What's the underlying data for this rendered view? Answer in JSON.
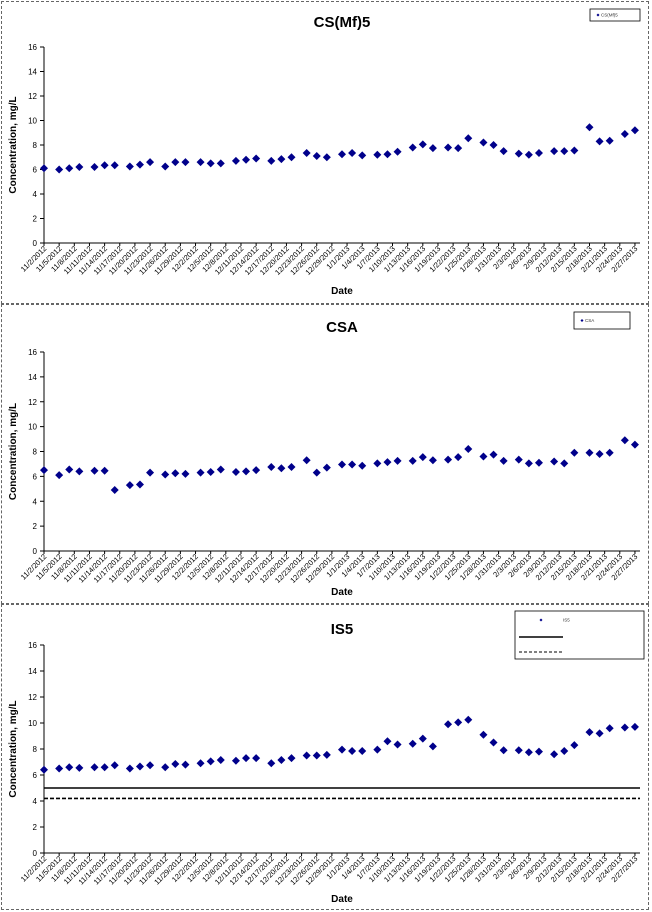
{
  "chart_data": [
    {
      "type": "scatter",
      "title": "CS(Mf)5",
      "xlabel": "Date",
      "ylabel": "Concentration, mg/L",
      "ylim": [
        0,
        16
      ],
      "yticks": [
        "0",
        "2",
        "4",
        "6",
        "8",
        "10",
        "12",
        "14",
        "16"
      ],
      "xlim": [
        "11/2/2012",
        "2/28/2013"
      ],
      "x_tick_labels": [
        "11/2/2012",
        "11/5/2012",
        "11/8/2012",
        "11/11/2012",
        "11/14/2012",
        "11/17/2012",
        "11/20/2012",
        "11/23/2012",
        "11/26/2012",
        "11/29/2012",
        "12/2/2012",
        "12/5/2012",
        "12/8/2012",
        "12/11/2012",
        "12/14/2012",
        "12/17/2012",
        "12/20/2012",
        "12/23/2012",
        "12/26/2012",
        "12/29/2012",
        "1/1/2013",
        "1/4/2013",
        "1/7/2013",
        "1/10/2013",
        "1/13/2013",
        "1/16/2013",
        "1/19/2013",
        "1/22/2013",
        "1/25/2013",
        "1/28/2013",
        "1/31/2013",
        "2/3/2013",
        "2/6/2013",
        "2/9/2013",
        "2/12/2013",
        "2/15/2013",
        "2/18/2013",
        "2/21/2013",
        "2/24/2013",
        "2/27/2013"
      ],
      "grid": false,
      "legend_position": "top-right",
      "series": [
        {
          "name": "CS(Mf)5",
          "color": "#00008B",
          "marker": "diamond",
          "points": [
            [
              "11/2/2012",
              6.1
            ],
            [
              "11/5/2012",
              6.0
            ],
            [
              "11/7/2012",
              6.1
            ],
            [
              "11/9/2012",
              6.2
            ],
            [
              "11/12/2012",
              6.2
            ],
            [
              "11/14/2012",
              6.35
            ],
            [
              "11/16/2012",
              6.35
            ],
            [
              "11/19/2012",
              6.25
            ],
            [
              "11/21/2012",
              6.4
            ],
            [
              "11/23/2012",
              6.6
            ],
            [
              "11/26/2012",
              6.25
            ],
            [
              "11/28/2012",
              6.6
            ],
            [
              "11/30/2012",
              6.6
            ],
            [
              "12/3/2012",
              6.6
            ],
            [
              "12/5/2012",
              6.5
            ],
            [
              "12/7/2012",
              6.5
            ],
            [
              "12/10/2012",
              6.7
            ],
            [
              "12/12/2012",
              6.8
            ],
            [
              "12/14/2012",
              6.9
            ],
            [
              "12/17/2012",
              6.7
            ],
            [
              "12/19/2012",
              6.85
            ],
            [
              "12/21/2012",
              7.0
            ],
            [
              "12/24/2012",
              7.35
            ],
            [
              "12/26/2012",
              7.1
            ],
            [
              "12/28/2012",
              7.0
            ],
            [
              "12/31/2012",
              7.25
            ],
            [
              "1/2/2013",
              7.35
            ],
            [
              "1/4/2013",
              7.15
            ],
            [
              "1/7/2013",
              7.2
            ],
            [
              "1/9/2013",
              7.25
            ],
            [
              "1/11/2013",
              7.45
            ],
            [
              "1/14/2013",
              7.8
            ],
            [
              "1/16/2013",
              8.05
            ],
            [
              "1/18/2013",
              7.75
            ],
            [
              "1/21/2013",
              7.8
            ],
            [
              "1/23/2013",
              7.75
            ],
            [
              "1/25/2013",
              8.55
            ],
            [
              "1/28/2013",
              8.2
            ],
            [
              "1/30/2013",
              8.0
            ],
            [
              "2/1/2013",
              7.5
            ],
            [
              "2/4/2013",
              7.3
            ],
            [
              "2/6/2013",
              7.2
            ],
            [
              "2/8/2013",
              7.35
            ],
            [
              "2/11/2013",
              7.5
            ],
            [
              "2/13/2013",
              7.5
            ],
            [
              "2/15/2013",
              7.55
            ],
            [
              "2/18/2013",
              9.45
            ],
            [
              "2/20/2013",
              8.3
            ],
            [
              "2/22/2013",
              8.35
            ],
            [
              "2/25/2013",
              8.9
            ],
            [
              "2/27/2013",
              9.2
            ]
          ]
        }
      ]
    },
    {
      "type": "scatter",
      "title": "CSA",
      "xlabel": "Date",
      "ylabel": "Concentration, mg/L",
      "ylim": [
        0,
        16
      ],
      "yticks": [
        "0",
        "2",
        "4",
        "6",
        "8",
        "10",
        "12",
        "14",
        "16"
      ],
      "xlim": [
        "11/2/2012",
        "2/28/2013"
      ],
      "x_tick_labels": [
        "11/2/2012",
        "11/5/2012",
        "11/8/2012",
        "11/11/2012",
        "11/14/2012",
        "11/17/2012",
        "11/20/2012",
        "11/23/2012",
        "11/26/2012",
        "11/29/2012",
        "12/2/2012",
        "12/5/2012",
        "12/8/2012",
        "12/11/2012",
        "12/14/2012",
        "12/17/2012",
        "12/20/2012",
        "12/23/2012",
        "12/26/2012",
        "12/29/2012",
        "1/1/2013",
        "1/4/2013",
        "1/7/2013",
        "1/10/2013",
        "1/13/2013",
        "1/16/2013",
        "1/19/2013",
        "1/22/2013",
        "1/25/2013",
        "1/28/2013",
        "1/31/2013",
        "2/3/2013",
        "2/6/2013",
        "2/9/2013",
        "2/12/2013",
        "2/15/2013",
        "2/18/2013",
        "2/21/2013",
        "2/24/2013",
        "2/27/2013"
      ],
      "grid": false,
      "legend_position": "top-right",
      "series": [
        {
          "name": "CSA",
          "color": "#00008B",
          "marker": "diamond",
          "points": [
            [
              "11/2/2012",
              6.5
            ],
            [
              "11/5/2012",
              6.1
            ],
            [
              "11/7/2012",
              6.55
            ],
            [
              "11/9/2012",
              6.4
            ],
            [
              "11/12/2012",
              6.45
            ],
            [
              "11/14/2012",
              6.45
            ],
            [
              "11/16/2012",
              4.9
            ],
            [
              "11/19/2012",
              5.3
            ],
            [
              "11/21/2012",
              5.35
            ],
            [
              "11/23/2012",
              6.3
            ],
            [
              "11/26/2012",
              6.15
            ],
            [
              "11/28/2012",
              6.25
            ],
            [
              "11/30/2012",
              6.2
            ],
            [
              "12/3/2012",
              6.3
            ],
            [
              "12/5/2012",
              6.35
            ],
            [
              "12/7/2012",
              6.55
            ],
            [
              "12/10/2012",
              6.35
            ],
            [
              "12/12/2012",
              6.4
            ],
            [
              "12/14/2012",
              6.5
            ],
            [
              "12/17/2012",
              6.75
            ],
            [
              "12/19/2012",
              6.65
            ],
            [
              "12/21/2012",
              6.75
            ],
            [
              "12/24/2012",
              7.3
            ],
            [
              "12/26/2012",
              6.3
            ],
            [
              "12/28/2012",
              6.7
            ],
            [
              "12/31/2012",
              6.95
            ],
            [
              "1/2/2013",
              6.95
            ],
            [
              "1/4/2013",
              6.85
            ],
            [
              "1/7/2013",
              7.05
            ],
            [
              "1/9/2013",
              7.15
            ],
            [
              "1/11/2013",
              7.25
            ],
            [
              "1/14/2013",
              7.25
            ],
            [
              "1/16/2013",
              7.55
            ],
            [
              "1/18/2013",
              7.3
            ],
            [
              "1/21/2013",
              7.35
            ],
            [
              "1/23/2013",
              7.55
            ],
            [
              "1/25/2013",
              8.2
            ],
            [
              "1/28/2013",
              7.6
            ],
            [
              "1/30/2013",
              7.75
            ],
            [
              "2/1/2013",
              7.25
            ],
            [
              "2/4/2013",
              7.35
            ],
            [
              "2/6/2013",
              7.05
            ],
            [
              "2/8/2013",
              7.1
            ],
            [
              "2/11/2013",
              7.2
            ],
            [
              "2/13/2013",
              7.05
            ],
            [
              "2/15/2013",
              7.9
            ],
            [
              "2/18/2013",
              7.9
            ],
            [
              "2/20/2013",
              7.8
            ],
            [
              "2/22/2013",
              7.9
            ],
            [
              "2/25/2013",
              8.9
            ],
            [
              "2/27/2013",
              8.55
            ]
          ]
        }
      ]
    },
    {
      "type": "scatter",
      "title": "IS5",
      "xlabel": "Date",
      "ylabel": "Concentration, mg/L",
      "ylim": [
        0,
        16
      ],
      "yticks": [
        "0",
        "2",
        "4",
        "6",
        "8",
        "10",
        "12",
        "14",
        "16"
      ],
      "xlim": [
        "11/2/2012",
        "2/28/2013"
      ],
      "x_tick_labels": [
        "11/2/2012",
        "11/5/2012",
        "11/8/2012",
        "11/11/2012",
        "11/14/2012",
        "11/17/2012",
        "11/20/2012",
        "11/23/2012",
        "11/26/2012",
        "11/29/2012",
        "12/2/2012",
        "12/5/2012",
        "12/8/2012",
        "12/11/2012",
        "12/14/2012",
        "12/17/2012",
        "12/20/2012",
        "12/23/2012",
        "12/26/2012",
        "12/29/2012",
        "1/1/2013",
        "1/4/2013",
        "1/7/2013",
        "1/10/2013",
        "1/13/2013",
        "1/16/2013",
        "1/19/2013",
        "1/22/2013",
        "1/25/2013",
        "1/28/2013",
        "1/31/2013",
        "2/3/2013",
        "2/6/2013",
        "2/9/2013",
        "2/12/2013",
        "2/15/2013",
        "2/18/2013",
        "2/21/2013",
        "2/24/2013",
        "2/27/2013"
      ],
      "grid": false,
      "legend_position": "top-right",
      "series": [
        {
          "name": "IS5",
          "color": "#00008B",
          "marker": "diamond",
          "points": [
            [
              "11/2/2012",
              6.4
            ],
            [
              "11/5/2012",
              6.5
            ],
            [
              "11/7/2012",
              6.6
            ],
            [
              "11/9/2012",
              6.55
            ],
            [
              "11/12/2012",
              6.6
            ],
            [
              "11/14/2012",
              6.6
            ],
            [
              "11/16/2012",
              6.75
            ],
            [
              "11/19/2012",
              6.5
            ],
            [
              "11/21/2012",
              6.65
            ],
            [
              "11/23/2012",
              6.75
            ],
            [
              "11/26/2012",
              6.6
            ],
            [
              "11/28/2012",
              6.85
            ],
            [
              "11/30/2012",
              6.8
            ],
            [
              "12/3/2012",
              6.9
            ],
            [
              "12/5/2012",
              7.05
            ],
            [
              "12/7/2012",
              7.15
            ],
            [
              "12/10/2012",
              7.1
            ],
            [
              "12/12/2012",
              7.3
            ],
            [
              "12/14/2012",
              7.3
            ],
            [
              "12/17/2012",
              6.9
            ],
            [
              "12/19/2012",
              7.15
            ],
            [
              "12/21/2012",
              7.3
            ],
            [
              "12/24/2012",
              7.5
            ],
            [
              "12/26/2012",
              7.5
            ],
            [
              "12/28/2012",
              7.55
            ],
            [
              "12/31/2012",
              7.95
            ],
            [
              "1/2/2013",
              7.85
            ],
            [
              "1/4/2013",
              7.85
            ],
            [
              "1/7/2013",
              7.95
            ],
            [
              "1/9/2013",
              8.6
            ],
            [
              "1/11/2013",
              8.35
            ],
            [
              "1/14/2013",
              8.4
            ],
            [
              "1/16/2013",
              8.8
            ],
            [
              "1/18/2013",
              8.2
            ],
            [
              "1/21/2013",
              9.9
            ],
            [
              "1/23/2013",
              10.05
            ],
            [
              "1/25/2013",
              10.25
            ],
            [
              "1/28/2013",
              9.1
            ],
            [
              "1/30/2013",
              8.5
            ],
            [
              "2/1/2013",
              7.9
            ],
            [
              "2/4/2013",
              7.9
            ],
            [
              "2/6/2013",
              7.75
            ],
            [
              "2/8/2013",
              7.8
            ],
            [
              "2/11/2013",
              7.6
            ],
            [
              "2/13/2013",
              7.85
            ],
            [
              "2/15/2013",
              8.3
            ],
            [
              "2/18/2013",
              9.3
            ],
            [
              "2/20/2013",
              9.2
            ],
            [
              "2/22/2013",
              9.6
            ],
            [
              "2/25/2013",
              9.65
            ],
            [
              "2/27/2013",
              9.7
            ]
          ]
        },
        {
          "name": "",
          "type": "hline",
          "style": "solid",
          "color": "#000000",
          "y": 5.0
        },
        {
          "name": "",
          "type": "hline",
          "style": "dashed",
          "color": "#000000",
          "y": 4.2
        }
      ]
    }
  ]
}
